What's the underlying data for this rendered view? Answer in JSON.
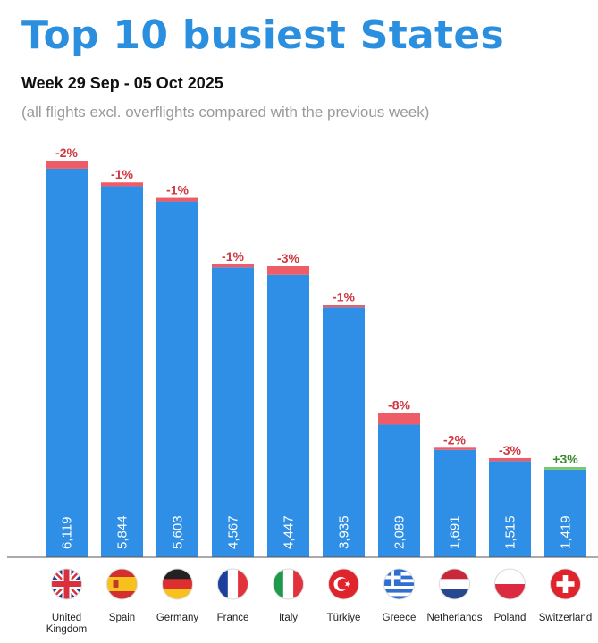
{
  "title": "Top 10 busiest States",
  "subtitle": "Week 29 Sep - 05 Oct 2025",
  "note": "(all flights excl. overflights compared with the previous week)",
  "colors": {
    "bar": "#2f8fe6",
    "decrease": "#ee5c68",
    "increase": "#7ec86f",
    "change_label_negative": "#d0383f",
    "change_label_positive": "#3a8a2f",
    "value_label": "#ffffff"
  },
  "chart_data": {
    "type": "bar",
    "title": "Top 10 busiest States",
    "categories": [
      "United Kingdom",
      "Spain",
      "Germany",
      "France",
      "Italy",
      "Türkiye",
      "Greece",
      "Netherlands",
      "Poland",
      "Switzerland"
    ],
    "category_labels": [
      [
        "United",
        "Kingdom"
      ],
      [
        "Spain"
      ],
      [
        "Germany"
      ],
      [
        "France"
      ],
      [
        "Italy"
      ],
      [
        "Türkiye"
      ],
      [
        "Greece"
      ],
      [
        "Netherlands"
      ],
      [
        "Poland"
      ],
      [
        "Switzerland"
      ]
    ],
    "values": [
      6119,
      5844,
      5603,
      4567,
      4447,
      3935,
      2089,
      1691,
      1515,
      1419
    ],
    "value_labels": [
      "6,119",
      "5,844",
      "5,603",
      "4,567",
      "4,447",
      "3,935",
      "2,089",
      "1,691",
      "1,515",
      "1,419"
    ],
    "change_pct": [
      -2,
      -1,
      -1,
      -1,
      -3,
      -1,
      -8,
      -2,
      -3,
      3
    ],
    "change_labels": [
      "-2%",
      "-1%",
      "-1%",
      "-1%",
      "-3%",
      "-1%",
      "-8%",
      "-2%",
      "-3%",
      "+3%"
    ],
    "flags": [
      "united-kingdom-flag",
      "spain-flag",
      "germany-flag",
      "france-flag",
      "italy-flag",
      "turkiye-flag",
      "greece-flag",
      "netherlands-flag",
      "poland-flag",
      "switzerland-flag"
    ],
    "ylim": [
      0,
      6244
    ],
    "grid": false,
    "xlabel": "",
    "ylabel": ""
  }
}
